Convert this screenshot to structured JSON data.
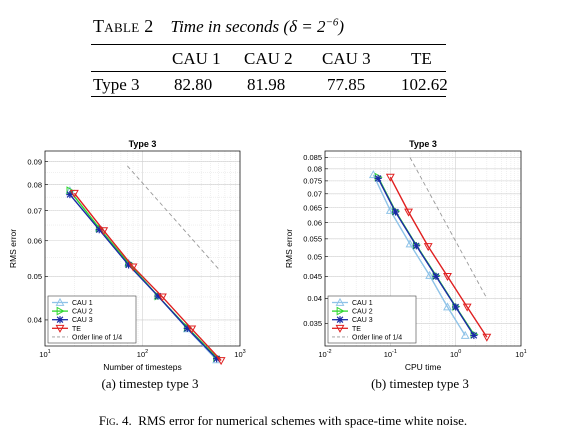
{
  "table": {
    "label": "Table 2",
    "caption": "Time in seconds (δ = 2",
    "caption_exp": "−6",
    "caption_end": ")",
    "headers": [
      "",
      "CAU 1",
      "CAU 2",
      "CAU 3",
      "TE"
    ],
    "row": [
      "Type 3",
      "82.80",
      "81.98",
      "77.85",
      "102.62"
    ]
  },
  "chart_data": [
    {
      "type": "line",
      "title": "Type 3",
      "xlabel": "Number of timesteps",
      "ylabel": "RMS error",
      "xscale": "log",
      "yscale": "log",
      "xlim": [
        10,
        1000
      ],
      "ylim": [
        0.035,
        0.095
      ],
      "x_ticks": [
        "10^1",
        "10^2",
        "10^3"
      ],
      "y_ticks": [
        "0.04",
        "0.05",
        "0.06",
        "0.07",
        "0.08",
        "0.09"
      ],
      "grid": true,
      "legend_position": "bottom-left",
      "series": [
        {
          "name": "CAU 1",
          "color": "#8fc3e8",
          "marker": "triangle-up",
          "x": [
            18,
            36,
            72,
            144,
            288,
            576
          ],
          "y": [
            0.0775,
            0.064,
            0.0535,
            0.0452,
            0.0382,
            0.0326
          ]
        },
        {
          "name": "CAU 2",
          "color": "#2fd62f",
          "marker": "triangle-right",
          "x": [
            18,
            36,
            72,
            144,
            288,
            576
          ],
          "y": [
            0.0775,
            0.064,
            0.0535,
            0.0452,
            0.0385,
            0.033
          ]
        },
        {
          "name": "CAU 3",
          "color": "#1a2aa6",
          "marker": "star",
          "x": [
            18,
            36,
            72,
            144,
            288,
            576
          ],
          "y": [
            0.076,
            0.0635,
            0.053,
            0.0452,
            0.0383,
            0.0328
          ]
        },
        {
          "name": "TE",
          "color": "#e02020",
          "marker": "triangle-down",
          "x": [
            20,
            40,
            80,
            160,
            320,
            640
          ],
          "y": [
            0.0765,
            0.0632,
            0.0525,
            0.045,
            0.0382,
            0.0325
          ]
        }
      ],
      "reference": {
        "name": "Order line of 1/4",
        "color": "#999999",
        "x": [
          70,
          600
        ],
        "y": [
          0.088,
          0.052
        ]
      },
      "caption": "(a) timestep type 3"
    },
    {
      "type": "line",
      "title": "Type 3",
      "xlabel": "CPU time",
      "ylabel": "RMS error",
      "xscale": "log",
      "yscale": "log",
      "xlim": [
        0.01,
        10
      ],
      "ylim": [
        0.031,
        0.088
      ],
      "x_ticks": [
        "10^-2",
        "10^-1",
        "10^0",
        "10^1"
      ],
      "y_ticks": [
        "0.035",
        "0.04",
        "0.045",
        "0.05",
        "0.055",
        "0.06",
        "0.065",
        "0.07",
        "0.075",
        "0.08",
        "0.085"
      ],
      "grid": true,
      "legend_position": "bottom-left",
      "series": [
        {
          "name": "CAU 1",
          "color": "#8fc3e8",
          "marker": "triangle-up",
          "x": [
            0.055,
            0.1,
            0.2,
            0.4,
            0.75,
            1.4
          ],
          "y": [
            0.0775,
            0.064,
            0.0535,
            0.0452,
            0.0382,
            0.0328
          ]
        },
        {
          "name": "CAU 2",
          "color": "#2fd62f",
          "marker": "triangle-right",
          "x": [
            0.065,
            0.12,
            0.25,
            0.5,
            1.0,
            1.9
          ],
          "y": [
            0.0765,
            0.0638,
            0.0532,
            0.0452,
            0.0383,
            0.033
          ]
        },
        {
          "name": "CAU 3",
          "color": "#1a2aa6",
          "marker": "star",
          "x": [
            0.065,
            0.12,
            0.25,
            0.5,
            1.0,
            1.9
          ],
          "y": [
            0.076,
            0.0635,
            0.053,
            0.045,
            0.0382,
            0.0328
          ]
        },
        {
          "name": "TE",
          "color": "#e02020",
          "marker": "triangle-down",
          "x": [
            0.1,
            0.19,
            0.38,
            0.75,
            1.5,
            3.0
          ],
          "y": [
            0.0765,
            0.0635,
            0.0528,
            0.045,
            0.0382,
            0.0325
          ]
        }
      ],
      "reference": {
        "name": "Order line of 1/4",
        "color": "#999999",
        "x": [
          0.2,
          3.0
        ],
        "y": [
          0.085,
          0.04
        ]
      },
      "caption": "(b) timestep type 3"
    }
  ],
  "figure": {
    "label": "Fig. 4.",
    "caption": "RMS error for numerical schemes with space-time white noise."
  }
}
